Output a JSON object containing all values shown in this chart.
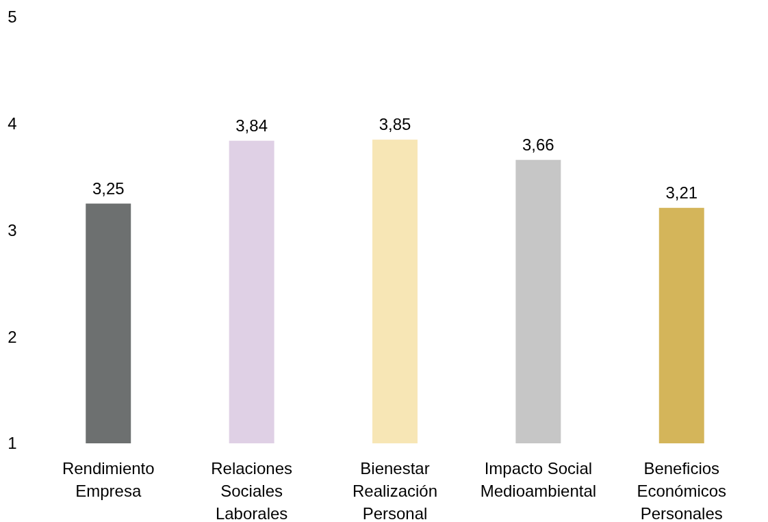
{
  "chart_data": {
    "type": "bar",
    "categories": [
      "Rendimiento Empresa",
      "Relaciones Sociales Laborales",
      "Bienestar Realización Personal",
      "Impacto Social Medioambiental",
      "Beneficios Económicos Personales"
    ],
    "values": [
      3.25,
      3.84,
      3.85,
      3.66,
      3.21
    ],
    "colors": [
      "#6d7070",
      "#dfd0e5",
      "#f7e6b5",
      "#c6c6c6",
      "#d4b55a"
    ],
    "value_labels": [
      "3,25",
      "3,84",
      "3,85",
      "3,66",
      "3,21"
    ],
    "ylim": [
      1,
      5
    ],
    "yticks": [
      1,
      2,
      3,
      4,
      5
    ],
    "grid": false
  }
}
